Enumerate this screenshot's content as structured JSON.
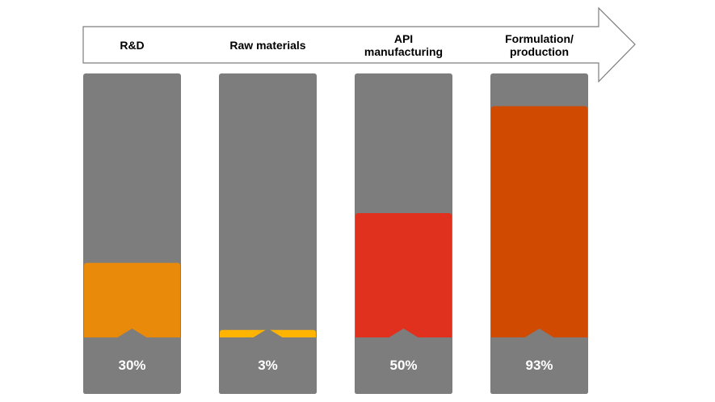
{
  "chart_data": {
    "type": "bar",
    "title": "",
    "xlabel": "",
    "ylabel": "",
    "ylim": [
      0,
      100
    ],
    "grid": false,
    "categories": [
      "R&D",
      "Raw materials",
      "API\nmanufacturing",
      "Formulation/\nproduction"
    ],
    "values": [
      30,
      3,
      50,
      93
    ],
    "value_labels": [
      "30%",
      "3%",
      "50%",
      "93%"
    ],
    "colors": [
      "#E98A0A",
      "#FFB400",
      "#E0301E",
      "#D04A02"
    ],
    "track_color": "#7D7D7D",
    "arrow_header_border": "#7D7D7D",
    "label_color": "#ffffff",
    "category_label_color": "#000000"
  }
}
